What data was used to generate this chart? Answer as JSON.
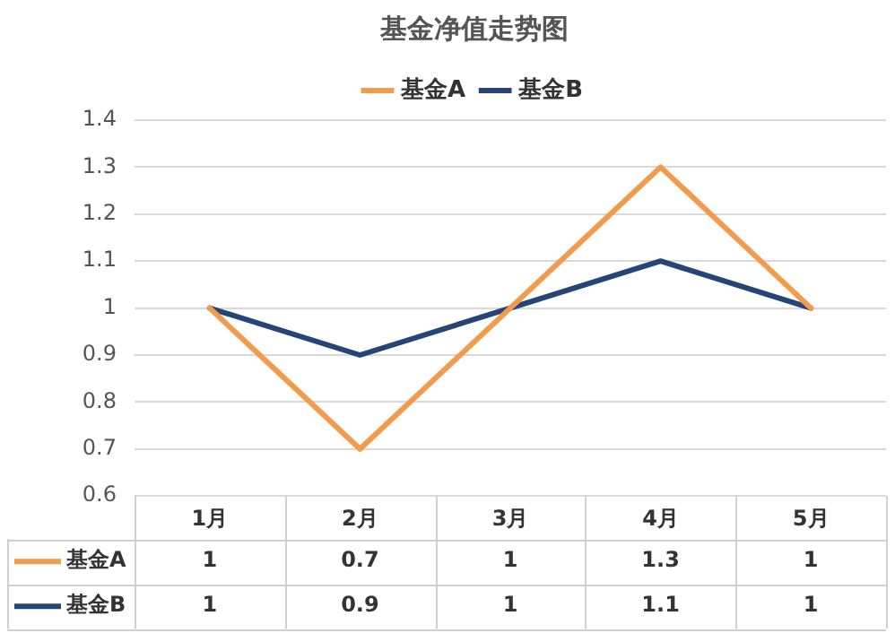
{
  "chart_data": {
    "type": "line",
    "title": "基金净值走势图",
    "categories": [
      "1月",
      "2月",
      "3月",
      "4月",
      "5月"
    ],
    "series": [
      {
        "name": "基金A",
        "color": "#f29b4c",
        "values": [
          1,
          0.7,
          1,
          1.3,
          1
        ]
      },
      {
        "name": "基金B",
        "color": "#264478",
        "values": [
          1,
          0.9,
          1,
          1.1,
          1
        ]
      }
    ],
    "ylim": [
      0.6,
      1.4
    ],
    "yticks": [
      0.6,
      0.7,
      0.8,
      0.9,
      1,
      1.1,
      1.2,
      1.3,
      1.4
    ],
    "grid": "y",
    "legend": "top",
    "marker": "none",
    "line_style": "solid",
    "data_labels": true
  }
}
